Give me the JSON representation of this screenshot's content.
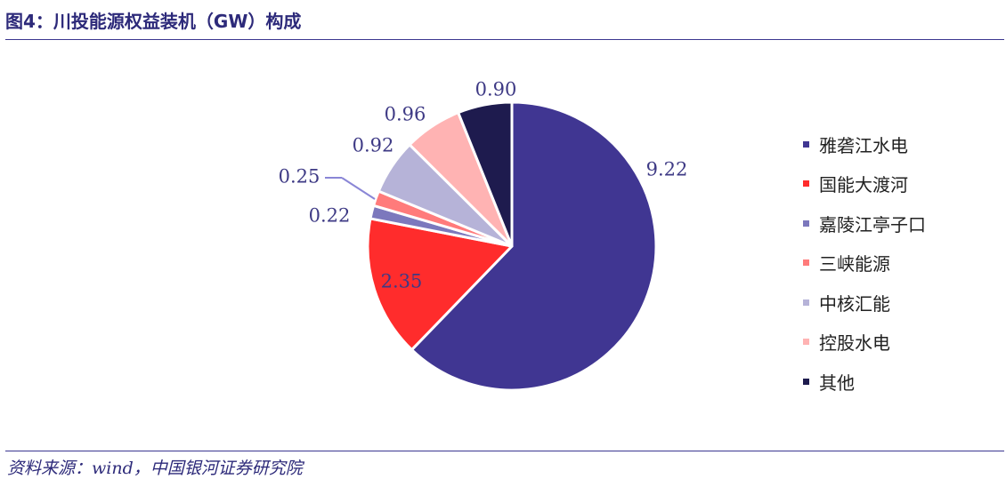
{
  "header": {
    "title": "图4：川投能源权益装机（GW）构成"
  },
  "footer": {
    "source": "资料来源：wind，中国银河证券研究院"
  },
  "chart_data": {
    "type": "pie",
    "title": "图4：川投能源权益装机（GW）构成",
    "legend_position": "right",
    "start_angle_deg": 0,
    "direction": "clockwise",
    "slices": [
      {
        "label": "雅砻江水电",
        "value": 9.22,
        "value_label": "9.22",
        "color": "#403692"
      },
      {
        "label": "国能大渡河",
        "value": 2.35,
        "value_label": "2.35",
        "color": "#ff2c2c"
      },
      {
        "label": "嘉陵江亭子口",
        "value": 0.22,
        "value_label": "0.22",
        "color": "#7c78bd"
      },
      {
        "label": "三峡能源",
        "value": 0.25,
        "value_label": "0.25",
        "color": "#ff7b7b"
      },
      {
        "label": "中核汇能",
        "value": 0.92,
        "value_label": "0.92",
        "color": "#b6b3d8"
      },
      {
        "label": "控股水电",
        "value": 0.96,
        "value_label": "0.96",
        "color": "#ffb3b3"
      },
      {
        "label": "其他",
        "value": 0.9,
        "value_label": "0.90",
        "color": "#1e1b4e"
      }
    ]
  }
}
